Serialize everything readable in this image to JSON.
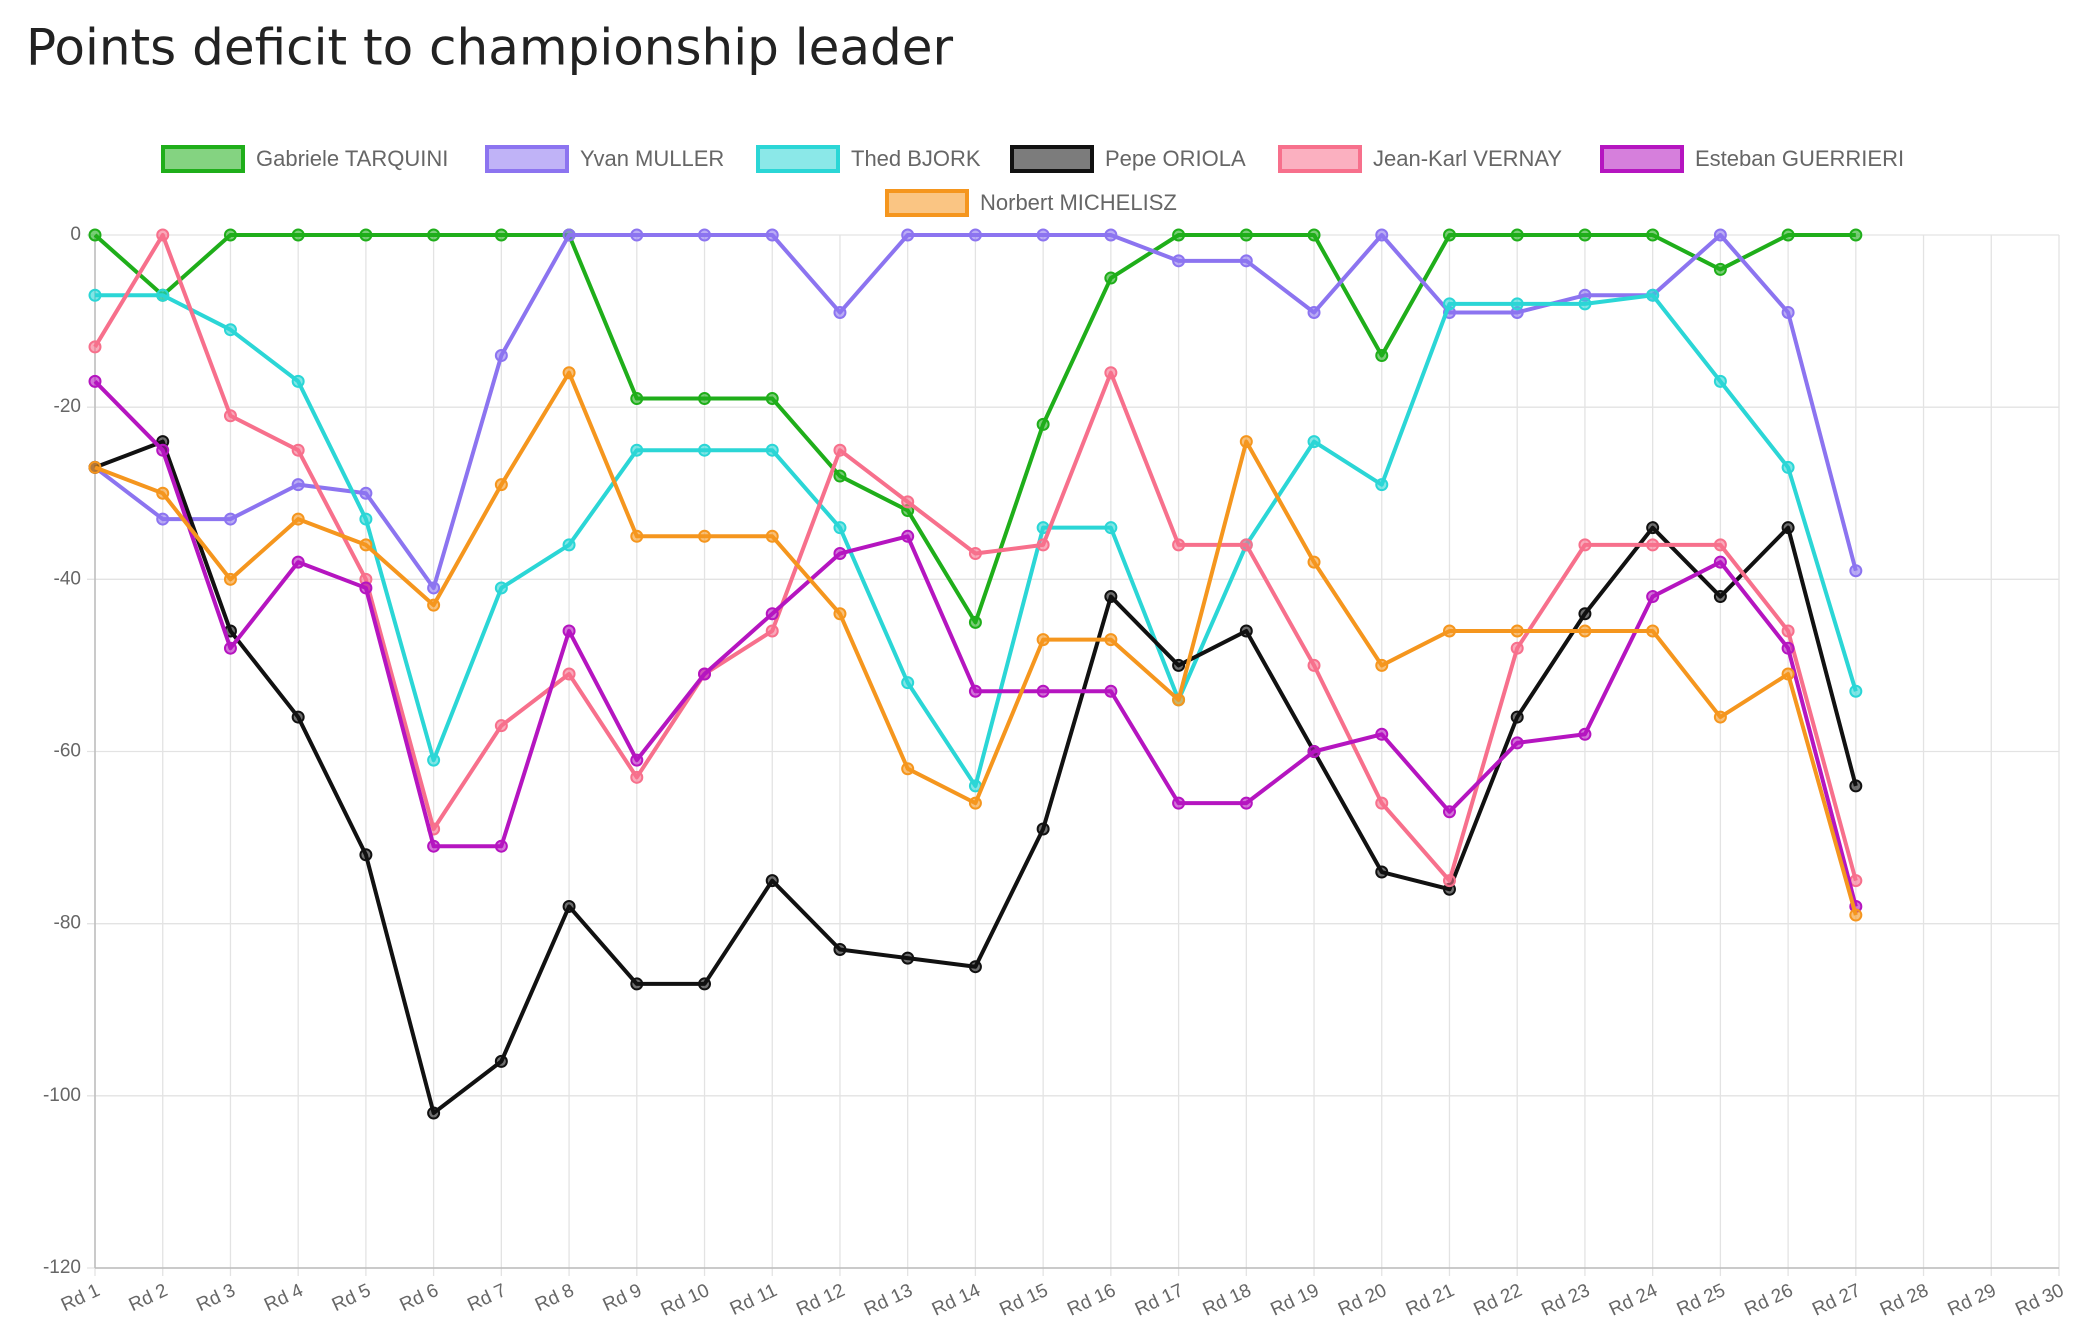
{
  "chart_data": {
    "type": "line",
    "title": "Points deficit to championship leader",
    "categories": [
      "Rd 1",
      "Rd 2",
      "Rd 3",
      "Rd 4",
      "Rd 5",
      "Rd 6",
      "Rd 7",
      "Rd 8",
      "Rd 9",
      "Rd 10",
      "Rd 11",
      "Rd 12",
      "Rd 13",
      "Rd 14",
      "Rd 15",
      "Rd 16",
      "Rd 17",
      "Rd 18",
      "Rd 19",
      "Rd 20",
      "Rd 21",
      "Rd 22",
      "Rd 23",
      "Rd 24",
      "Rd 25",
      "Rd 26",
      "Rd 27",
      "Rd 28",
      "Rd 29",
      "Rd 30"
    ],
    "ylim": [
      -120,
      0
    ],
    "yticks": [
      -120,
      -100,
      -80,
      -60,
      -40,
      -20,
      0
    ],
    "grid": true,
    "legend": "top",
    "series": [
      {
        "name": "Gabriele TARQUINI",
        "color": "#1fae1a",
        "values": [
          0,
          -7,
          0,
          0,
          0,
          0,
          0,
          0,
          -19,
          -19,
          -19,
          -28,
          -32,
          -45,
          -22,
          -5,
          0,
          0,
          0,
          -14,
          0,
          0,
          0,
          0,
          -4,
          0,
          0,
          null,
          null,
          null
        ]
      },
      {
        "name": "Yvan MULLER",
        "color": "#8c74f0",
        "values": [
          -27,
          -33,
          -33,
          -29,
          -30,
          -41,
          -14,
          0,
          0,
          0,
          0,
          -9,
          0,
          0,
          0,
          0,
          -3,
          -3,
          -9,
          0,
          -9,
          -9,
          -7,
          -7,
          0,
          -9,
          -39,
          null,
          null,
          null
        ]
      },
      {
        "name": "Thed BJORK",
        "color": "#2bd6d6",
        "values": [
          -7,
          -7,
          -11,
          -17,
          -33,
          -61,
          -41,
          -36,
          -25,
          -25,
          -25,
          -34,
          -52,
          -64,
          -34,
          -34,
          -54,
          -36,
          -24,
          -29,
          -8,
          -8,
          -8,
          -7,
          -17,
          -27,
          -53,
          null,
          null,
          null
        ]
      },
      {
        "name": "Pepe ORIOLA",
        "color": "#111111",
        "values": [
          -27,
          -24,
          -46,
          -56,
          -72,
          -102,
          -96,
          -78,
          -87,
          -87,
          -75,
          -83,
          -84,
          -85,
          -69,
          -42,
          -50,
          -46,
          -60,
          -74,
          -76,
          -56,
          -44,
          -34,
          -42,
          -34,
          -64,
          null,
          null,
          null
        ]
      },
      {
        "name": "Jean-Karl VERNAY",
        "color": "#f7708c",
        "values": [
          -13,
          0,
          -21,
          -25,
          -40,
          -69,
          -57,
          -51,
          -63,
          -51,
          -46,
          -25,
          -31,
          -37,
          -36,
          -16,
          -36,
          -36,
          -50,
          -66,
          -75,
          -48,
          -36,
          -36,
          -36,
          -46,
          -75,
          null,
          null,
          null
        ]
      },
      {
        "name": "Esteban GUERRIERI",
        "color": "#b515c0",
        "values": [
          -17,
          -25,
          -48,
          -38,
          -41,
          -71,
          -71,
          -46,
          -61,
          -51,
          -44,
          -37,
          -35,
          -53,
          -53,
          -53,
          -66,
          -66,
          -60,
          -58,
          -67,
          -59,
          -58,
          -42,
          -38,
          -48,
          -78,
          null,
          null,
          null
        ]
      },
      {
        "name": "Norbert MICHELISZ",
        "color": "#f5961e",
        "values": [
          -27,
          -30,
          -40,
          -33,
          -36,
          -43,
          -29,
          -16,
          -35,
          -35,
          -35,
          -44,
          -62,
          -66,
          -47,
          -47,
          -54,
          -24,
          -38,
          -50,
          -46,
          -46,
          -46,
          -46,
          -56,
          -51,
          -79,
          null,
          null,
          null
        ]
      }
    ]
  }
}
